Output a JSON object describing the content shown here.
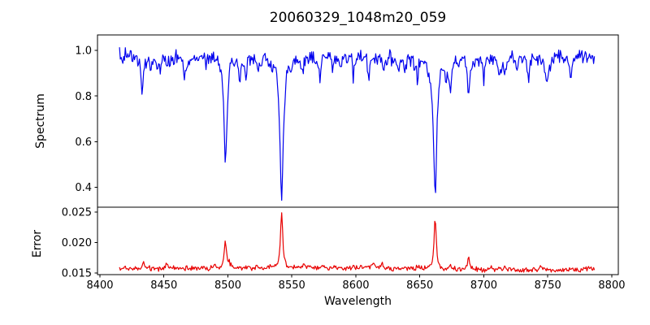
{
  "chart_data": [
    {
      "type": "line",
      "panel": "top",
      "title": "20060329_1048m20_059",
      "ylabel": "Spectrum",
      "series_name": "spectrum",
      "color": "#0000ee",
      "xlim": [
        8398.1,
        8805.1
      ],
      "ylim": [
        0.3132,
        1.0676
      ],
      "yticks": [
        {
          "value": 0.4,
          "label": "0.4"
        },
        {
          "value": 0.6,
          "label": "0.6"
        },
        {
          "value": 0.8,
          "label": "0.8"
        },
        {
          "value": 1.0,
          "label": "1.0"
        }
      ],
      "x_start": 8415.3,
      "x_end": 8787,
      "sample_step": 0.65,
      "continuum": 0.978,
      "wave_amp": 0.006,
      "wave_period": 55,
      "features": [
        {
          "wavelength": 8433,
          "depth": 0.165,
          "width": 0.9
        },
        {
          "wavelength": 8447,
          "depth": 0.09,
          "width": 0.8
        },
        {
          "wavelength": 8458,
          "depth": 0.05,
          "width": 0.7
        },
        {
          "wavelength": 8466,
          "depth": 0.1,
          "width": 0.8
        },
        {
          "wavelength": 8483,
          "depth": 0.06,
          "width": 0.7
        },
        {
          "wavelength": 8498,
          "depth": 0.455,
          "width": 1.5
        },
        {
          "wavelength": 8509,
          "depth": 0.125,
          "width": 0.8
        },
        {
          "wavelength": 8514,
          "depth": 0.1,
          "width": 0.7
        },
        {
          "wavelength": 8526,
          "depth": 0.05,
          "width": 0.7
        },
        {
          "wavelength": 8542,
          "depth": 0.63,
          "width": 1.7
        },
        {
          "wavelength": 8572,
          "depth": 0.08,
          "width": 0.8
        },
        {
          "wavelength": 8582,
          "depth": 0.06,
          "width": 0.7
        },
        {
          "wavelength": 8598,
          "depth": 0.09,
          "width": 0.8
        },
        {
          "wavelength": 8610,
          "depth": 0.1,
          "width": 0.8
        },
        {
          "wavelength": 8622,
          "depth": 0.06,
          "width": 0.7
        },
        {
          "wavelength": 8638,
          "depth": 0.07,
          "width": 0.7
        },
        {
          "wavelength": 8648,
          "depth": 0.09,
          "width": 0.8
        },
        {
          "wavelength": 8662,
          "depth": 0.595,
          "width": 1.6
        },
        {
          "wavelength": 8674,
          "depth": 0.12,
          "width": 0.8
        },
        {
          "wavelength": 8688,
          "depth": 0.165,
          "width": 0.9
        },
        {
          "wavelength": 8700,
          "depth": 0.09,
          "width": 0.8
        },
        {
          "wavelength": 8712,
          "depth": 0.06,
          "width": 0.7
        },
        {
          "wavelength": 8726,
          "depth": 0.07,
          "width": 0.7
        },
        {
          "wavelength": 8735,
          "depth": 0.09,
          "width": 0.8
        },
        {
          "wavelength": 8750,
          "depth": 0.1,
          "width": 0.8
        },
        {
          "wavelength": 8768,
          "depth": 0.08,
          "width": 0.8
        }
      ],
      "noise": {
        "seed": 1234,
        "amplitude": 0.038,
        "minor_count": 70,
        "minor_max": 0.075,
        "minor_sign": -1,
        "clamp": [
          0.318,
          1.06
        ]
      }
    },
    {
      "type": "line",
      "panel": "bottom",
      "ylabel": "Error",
      "xlabel": "Wavelength",
      "series_name": "error",
      "color": "#e80000",
      "xlim": [
        8398.1,
        8805.1
      ],
      "ylim": [
        0.01473,
        0.0258
      ],
      "yticks": [
        {
          "value": 0.015,
          "label": "0.015"
        },
        {
          "value": 0.02,
          "label": "0.020"
        },
        {
          "value": 0.025,
          "label": "0.025"
        }
      ],
      "xticks": [
        {
          "value": 8400,
          "label": "8400"
        },
        {
          "value": 8450,
          "label": "8450"
        },
        {
          "value": 8500,
          "label": "8500"
        },
        {
          "value": 8550,
          "label": "8550"
        },
        {
          "value": 8600,
          "label": "8600"
        },
        {
          "value": 8650,
          "label": "8650"
        },
        {
          "value": 8700,
          "label": "8700"
        },
        {
          "value": 8750,
          "label": "8750"
        },
        {
          "value": 8800,
          "label": "8800"
        }
      ],
      "x_start": 8415.3,
      "x_end": 8787,
      "sample_step": 0.65,
      "continuum": 0.01565,
      "wave_amp": 0.00012,
      "wave_period": 70,
      "features": [
        {
          "wavelength": 8434,
          "height": 0.0012,
          "width": 0.7
        },
        {
          "wavelength": 8452,
          "height": 0.0005,
          "width": 0.6
        },
        {
          "wavelength": 8498,
          "height": 0.0042,
          "width": 0.9
        },
        {
          "wavelength": 8542,
          "height": 0.0093,
          "width": 1.0
        },
        {
          "wavelength": 8559,
          "height": 0.0007,
          "width": 0.7
        },
        {
          "wavelength": 8574,
          "height": 0.0008,
          "width": 0.7
        },
        {
          "wavelength": 8598,
          "height": 0.0005,
          "width": 0.6
        },
        {
          "wavelength": 8620,
          "height": 0.0005,
          "width": 0.6
        },
        {
          "wavelength": 8662,
          "height": 0.0086,
          "width": 0.95
        },
        {
          "wavelength": 8674,
          "height": 0.0008,
          "width": 0.6
        },
        {
          "wavelength": 8688,
          "height": 0.0016,
          "width": 0.7
        },
        {
          "wavelength": 8745,
          "height": 0.0004,
          "width": 0.6
        }
      ],
      "noise": {
        "seed": 77,
        "amplitude": 0.0005,
        "minor_count": 50,
        "minor_max": 0.0009,
        "minor_sign": 1,
        "clamp": [
          0.0149,
          0.0256
        ]
      }
    }
  ]
}
